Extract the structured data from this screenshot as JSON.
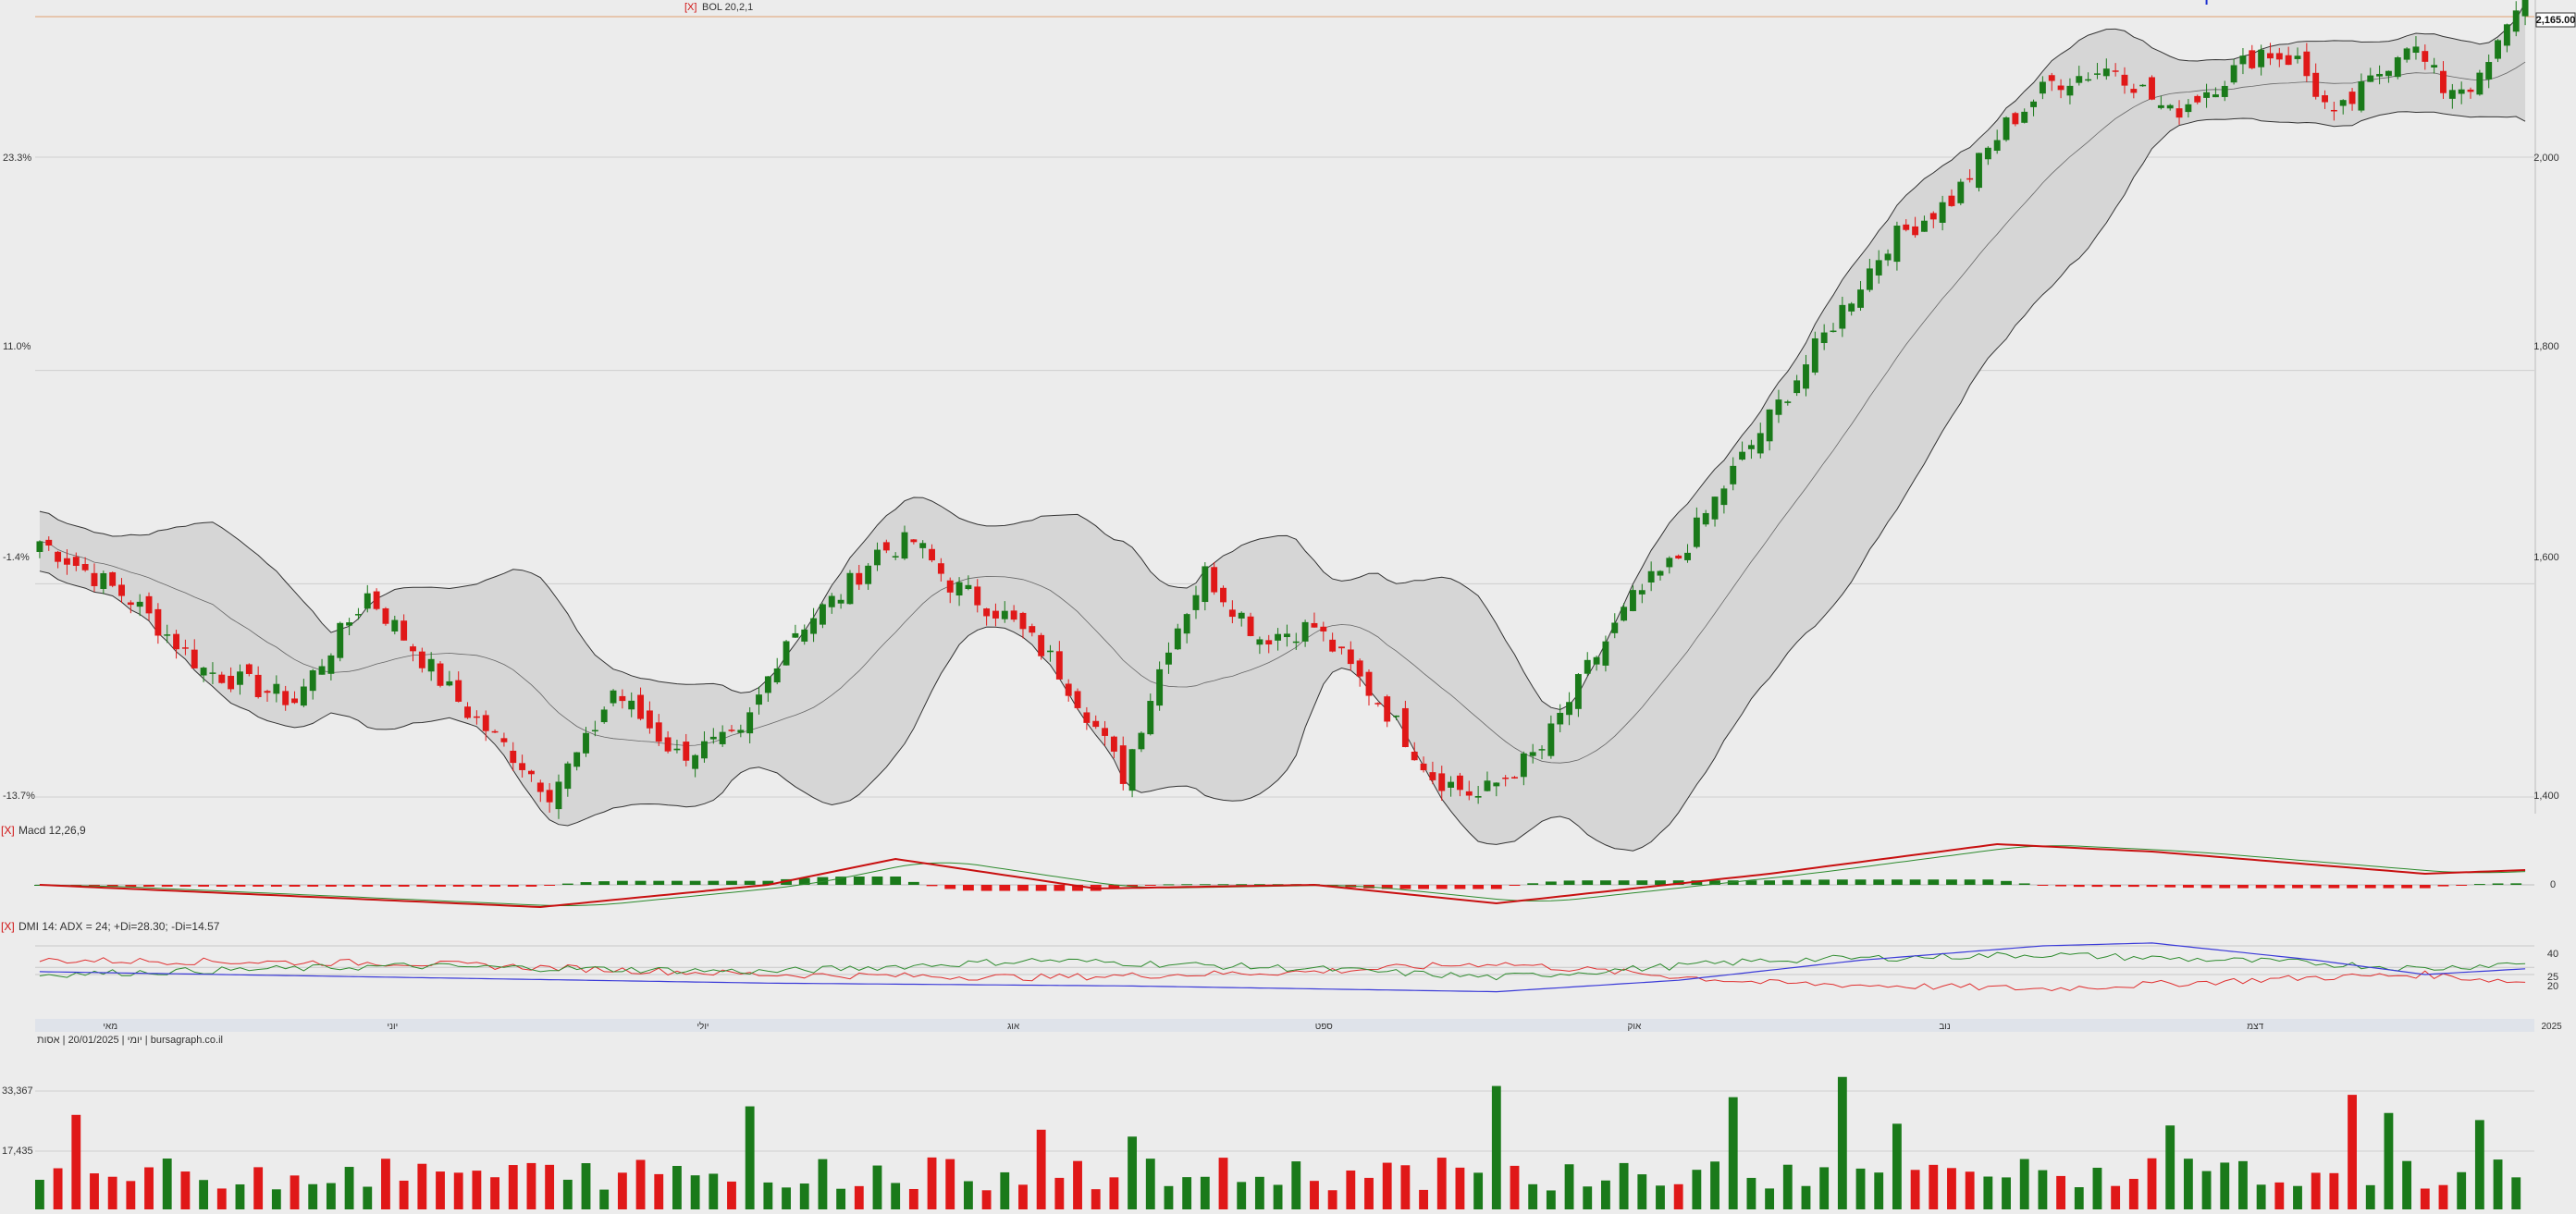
{
  "header": {
    "bollinger_label": "BOL 20,2,1",
    "close_marker": "[X]"
  },
  "price_panel": {
    "right_axis": [
      "2,000",
      "1,800",
      "1,600",
      "1,400"
    ],
    "left_axis": [
      "23.3%",
      "11.0%",
      "-1.4%",
      "-13.7%"
    ],
    "last_price": "2,165.00"
  },
  "macd_panel": {
    "label": "Macd 12,26,9",
    "zero_label": "0"
  },
  "dmi_panel": {
    "label": "DMI 14: ADX = 24; +Di=28.30; -Di=14.57",
    "level_labels": [
      "40",
      "25",
      "20"
    ]
  },
  "month_axis": [
    "מאי",
    "יוני",
    "יולי",
    "אוג",
    "ספט",
    "אוק",
    "נוב",
    "דצמ",
    "2025"
  ],
  "volume_panel": {
    "label": "יומי | 20/01/2025 | אסות | bursagraph.co.il",
    "axis": [
      "33,367",
      "17,435"
    ]
  },
  "colors": {
    "up": "#1a7a1a",
    "down": "#e01818",
    "band_fill": "#d6d6d6",
    "resistance": "#1c2fd0",
    "adx": "#3a3ad8",
    "plus_di": "#2e8b2e",
    "minus_di": "#e03030",
    "macd_line": "#c81010",
    "signal_line": "#2e8b2e"
  },
  "chart_data": [
    {
      "type": "candlestick",
      "title": "",
      "y_ticks": [
        2000,
        1800,
        1600,
        1400
      ],
      "ylim": [
        1380,
        2165
      ],
      "last_close": 2165,
      "resistance_level": 2150,
      "bollinger": "20,2,1",
      "anchors": [
        [
          0,
          1640
        ],
        [
          10,
          1585
        ],
        [
          18,
          1520
        ],
        [
          28,
          1490
        ],
        [
          36,
          1590
        ],
        [
          40,
          1550
        ],
        [
          47,
          1480
        ],
        [
          52,
          1440
        ],
        [
          56,
          1405
        ],
        [
          60,
          1450
        ],
        [
          63,
          1500
        ],
        [
          70,
          1440
        ],
        [
          77,
          1455
        ],
        [
          82,
          1550
        ],
        [
          88,
          1590
        ],
        [
          92,
          1630
        ],
        [
          96,
          1640
        ],
        [
          100,
          1600
        ],
        [
          106,
          1570
        ],
        [
          111,
          1530
        ],
        [
          115,
          1480
        ],
        [
          119,
          1420
        ],
        [
          124,
          1545
        ],
        [
          128,
          1610
        ],
        [
          134,
          1550
        ],
        [
          140,
          1560
        ],
        [
          143,
          1530
        ],
        [
          148,
          1480
        ],
        [
          153,
          1420
        ],
        [
          158,
          1400
        ],
        [
          165,
          1445
        ],
        [
          170,
          1520
        ],
        [
          175,
          1585
        ],
        [
          180,
          1625
        ],
        [
          186,
          1705
        ],
        [
          190,
          1755
        ],
        [
          197,
          1845
        ],
        [
          203,
          1920
        ],
        [
          210,
          1960
        ],
        [
          216,
          2030
        ],
        [
          221,
          2070
        ],
        [
          228,
          2085
        ],
        [
          234,
          2040
        ],
        [
          240,
          2075
        ],
        [
          244,
          2100
        ],
        [
          248,
          2090
        ],
        [
          252,
          2035
        ],
        [
          256,
          2070
        ],
        [
          260,
          2110
        ],
        [
          264,
          2065
        ],
        [
          268,
          2070
        ],
        [
          271,
          2120
        ],
        [
          273,
          2165
        ]
      ],
      "seed": 7
    },
    {
      "type": "line",
      "title": "Macd 12,26,9",
      "series": [
        {
          "values": [
            [
              0,
              0
            ],
            [
              55,
              -30
            ],
            [
              80,
              0
            ],
            [
              94,
              35
            ],
            [
              116,
              -5
            ],
            [
              140,
              0
            ],
            [
              160,
              -25
            ],
            [
              190,
              15
            ],
            [
              215,
              55
            ],
            [
              232,
              45
            ],
            [
              262,
              15
            ],
            [
              273,
              20
            ]
          ]
        }
      ]
    },
    {
      "type": "line",
      "title": "DMI 14",
      "y_ticks": [
        40,
        25,
        20
      ],
      "ylim": [
        0,
        50
      ],
      "adx": 24,
      "plus_di": 28.3,
      "minus_di": 14.57
    },
    {
      "type": "bar",
      "y_ticks": [
        33367,
        17435
      ],
      "ylim": [
        0,
        50000
      ]
    }
  ]
}
